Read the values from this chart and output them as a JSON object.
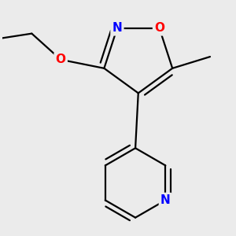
{
  "bg_color": "#ebebeb",
  "bond_color": "#000000",
  "N_color": "#0000ff",
  "O_color": "#ff0000",
  "font_size": 11,
  "bond_width": 1.6,
  "figsize": [
    3.0,
    3.0
  ],
  "dpi": 100,
  "xlim": [
    -1.8,
    2.2
  ],
  "ylim": [
    -2.5,
    1.5
  ]
}
